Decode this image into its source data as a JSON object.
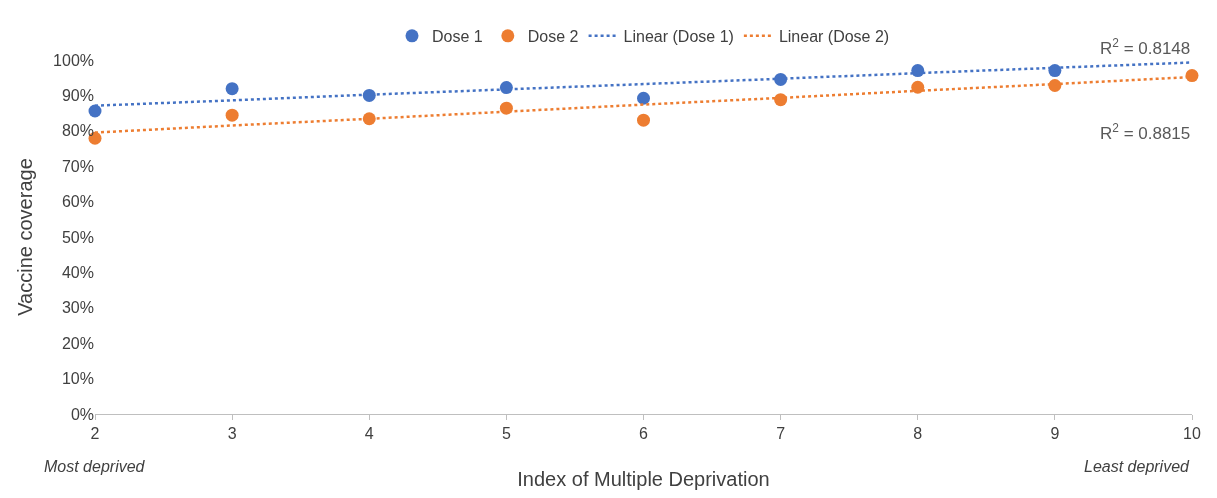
{
  "chart_data": {
    "type": "scatter",
    "xlabel": "Index of Multiple Deprivation",
    "ylabel": "Vaccine coverage",
    "x": [
      2,
      3,
      4,
      5,
      6,
      7,
      8,
      9,
      10
    ],
    "series": [
      {
        "name": "Dose 1",
        "color": "#4472c4",
        "marker": "circle",
        "values": [
          85.6,
          91.9,
          90.0,
          92.2,
          89.2,
          94.5,
          97.0,
          97.0,
          null
        ]
      },
      {
        "name": "Dose 2",
        "color": "#ed7d31",
        "marker": "circle",
        "values": [
          77.9,
          84.4,
          83.4,
          86.4,
          83.0,
          88.8,
          92.3,
          92.8,
          95.6
        ]
      },
      {
        "name": "Linear (Dose 1)",
        "type": "line",
        "line_style": "dotted",
        "marker": "none",
        "color": "#4472c4",
        "values": [
          87.1,
          88.6,
          90.2,
          91.7,
          93.2,
          94.7,
          96.3,
          97.8,
          99.3
        ]
      },
      {
        "name": "Linear (Dose 2)",
        "type": "line",
        "line_style": "dotted",
        "marker": "none",
        "color": "#ed7d31",
        "values": [
          79.5,
          81.5,
          83.4,
          85.4,
          87.4,
          89.3,
          91.3,
          93.2,
          95.2
        ]
      }
    ],
    "annotations": [
      "R$^{2}$ = 0.8148",
      "R$^{2}$ = 0.8815",
      "Most deprived",
      "Least deprived"
    ],
    "xlim": [
      2,
      10
    ],
    "xticks": [
      2,
      3,
      4,
      5,
      6,
      7,
      8,
      9,
      10
    ],
    "ylim": [
      0,
      100
    ],
    "yticks": [
      {
        "value": 0,
        "label": "0%"
      },
      {
        "value": 10,
        "label": "10%"
      },
      {
        "value": 20,
        "label": "20%"
      },
      {
        "value": 30,
        "label": "30%"
      },
      {
        "value": 40,
        "label": "40%"
      },
      {
        "value": 50,
        "label": "50%"
      },
      {
        "value": 60,
        "label": "60%"
      },
      {
        "value": 70,
        "label": "70%"
      },
      {
        "value": 80,
        "label": "80%"
      },
      {
        "value": 90,
        "label": "90%"
      },
      {
        "value": 100,
        "label": "100%"
      }
    ],
    "legend": "top"
  }
}
